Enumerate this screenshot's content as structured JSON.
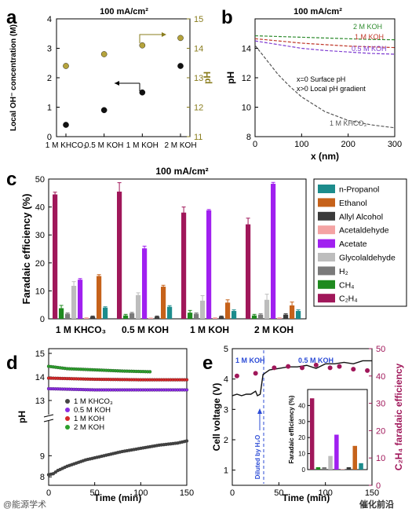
{
  "watermarks": {
    "left": "@能源学术",
    "right": "催化前沿"
  },
  "chart_data": [
    {
      "id": "a",
      "type": "scatter",
      "panel_label": "a",
      "title": "100 mA/cm²",
      "categories": [
        "1 M KHCO₃",
        "0.5 M KOH",
        "1 M KOH",
        "2 M KOH"
      ],
      "ylabel": "Local OH⁻ concentration (M)",
      "y2label": "pH",
      "ylim": [
        0,
        4
      ],
      "y2lim": [
        11,
        15
      ],
      "yticks": [
        0,
        1,
        2,
        3,
        4
      ],
      "y2ticks": [
        11,
        12,
        13,
        14,
        15
      ],
      "series": [
        {
          "axis": "left",
          "color": "#111111",
          "values": [
            0.4,
            0.9,
            1.5,
            2.4
          ]
        },
        {
          "axis": "right",
          "color": "#b5a33c",
          "values": [
            13.4,
            13.8,
            14.1,
            14.35
          ]
        }
      ]
    },
    {
      "id": "b",
      "type": "line",
      "panel_label": "b",
      "title": "100 mA/cm²",
      "xlabel": "x (nm)",
      "ylabel": "pH",
      "xlim": [
        0,
        300
      ],
      "ylim": [
        8,
        16
      ],
      "xticks": [
        0,
        100,
        200,
        300
      ],
      "yticks": [
        8,
        10,
        12,
        14
      ],
      "annotations": [
        "x=0   Surface pH",
        "x>0   Local pH gradient"
      ],
      "series": [
        {
          "name": "2 M KOH",
          "color": "#2e8b2e",
          "x": [
            0,
            50,
            100,
            150,
            200,
            250,
            300
          ],
          "y": [
            14.85,
            14.8,
            14.75,
            14.7,
            14.65,
            14.6,
            14.58
          ]
        },
        {
          "name": "1 M KOH",
          "color": "#c0392b",
          "x": [
            0,
            50,
            100,
            150,
            200,
            250,
            300
          ],
          "y": [
            14.65,
            14.5,
            14.35,
            14.25,
            14.15,
            14.1,
            14.05
          ]
        },
        {
          "name": "0.5 M KOH",
          "color": "#7e3bd1",
          "x": [
            0,
            50,
            100,
            150,
            200,
            250,
            300
          ],
          "y": [
            14.5,
            14.25,
            14.0,
            13.85,
            13.75,
            13.65,
            13.6
          ]
        },
        {
          "name": "1 M KHCO₃",
          "color": "#555555",
          "x": [
            0,
            25,
            50,
            75,
            100,
            150,
            200,
            250,
            300
          ],
          "y": [
            14.2,
            13.2,
            12.2,
            11.4,
            10.7,
            9.7,
            9.1,
            8.8,
            8.6
          ]
        }
      ]
    },
    {
      "id": "c",
      "type": "bar",
      "panel_label": "c",
      "title": "100 mA/cm²",
      "ylabel": "Faradaic efficiency (%)",
      "ylim": [
        0,
        50
      ],
      "yticks": [
        0,
        10,
        20,
        30,
        40,
        50
      ],
      "categories": [
        "1 M KHCO₃",
        "0.5 M KOH",
        "1 M KOH",
        "2 M KOH"
      ],
      "series": [
        {
          "name": "C₂H₄",
          "color": "#a0175a",
          "values": [
            44.5,
            45.5,
            38,
            33.8
          ],
          "err": [
            0.8,
            3.2,
            2.0,
            2.2
          ]
        },
        {
          "name": "CH₄",
          "color": "#1f8a1f",
          "values": [
            3.8,
            1.2,
            2.2,
            1.2
          ],
          "err": [
            1.0,
            0.4,
            0.8,
            0.4
          ]
        },
        {
          "name": "H₂",
          "color": "#7a7a7a",
          "values": [
            1.8,
            2.0,
            1.8,
            1.5
          ],
          "err": [
            0.3,
            0.3,
            0.3,
            0.3
          ]
        },
        {
          "name": "Glycolaldehyde",
          "color": "#bdbdbd",
          "values": [
            11.8,
            8.5,
            6.5,
            6.8
          ],
          "err": [
            1.5,
            0.8,
            1.8,
            2.0
          ]
        },
        {
          "name": "Acetate",
          "color": "#a020f0",
          "values": [
            14.0,
            25.2,
            38.8,
            48.3
          ],
          "err": [
            0.4,
            0.8,
            0.3,
            0.5
          ]
        },
        {
          "name": "Acetaldehyde",
          "color": "#f4a3a3",
          "values": [
            0.3,
            0.2,
            0.3,
            0.3
          ],
          "err": [
            0.1,
            0.1,
            0.1,
            0.1
          ]
        },
        {
          "name": "Allyl Alcohol",
          "color": "#3a3a3a",
          "values": [
            0.8,
            0.8,
            0.8,
            1.5
          ],
          "err": [
            0.2,
            0.2,
            0.2,
            0.3
          ]
        },
        {
          "name": "Ethanol",
          "color": "#c6621a",
          "values": [
            15.3,
            11.5,
            5.8,
            4.8
          ],
          "err": [
            0.5,
            0.5,
            1.0,
            1.2
          ]
        },
        {
          "name": "n-Propanol",
          "color": "#1c8c8c",
          "values": [
            4.0,
            4.3,
            2.8,
            2.8
          ],
          "err": [
            0.3,
            0.4,
            0.4,
            0.4
          ]
        }
      ],
      "legend_order": [
        "n-Propanol",
        "Ethanol",
        "Allyl Alcohol",
        "Acetaldehyde",
        "Acetate",
        "Glycolaldehyde",
        "H₂",
        "CH₄",
        "C₂H₄"
      ]
    },
    {
      "id": "d",
      "type": "line",
      "panel_label": "d",
      "xlabel": "Time (min)",
      "ylabel": "pH",
      "xlim": [
        0,
        150
      ],
      "xticks": [
        0,
        50,
        100,
        150
      ],
      "yticks_lower": [
        8,
        9
      ],
      "yticks_upper": [
        13,
        14,
        15
      ],
      "axis_break": [
        10,
        12.5
      ],
      "series": [
        {
          "name": "1 M KHCO₃",
          "color": "#444444",
          "x": [
            0,
            5,
            10,
            20,
            30,
            40,
            50,
            60,
            80,
            100,
            120,
            140,
            150
          ],
          "y": [
            8.1,
            8.15,
            8.3,
            8.5,
            8.65,
            8.8,
            8.9,
            9.0,
            9.2,
            9.35,
            9.5,
            9.6,
            9.7
          ]
        },
        {
          "name": "0.5 M KOH",
          "color": "#8a2be2",
          "x": [
            0,
            50,
            100,
            150
          ],
          "y": [
            13.5,
            13.45,
            13.45,
            13.45
          ]
        },
        {
          "name": "1 M KOH",
          "color": "#d62728",
          "x": [
            0,
            50,
            100,
            150
          ],
          "y": [
            13.95,
            13.9,
            13.88,
            13.88
          ]
        },
        {
          "name": "2 M KOH",
          "color": "#2ca02c",
          "x": [
            0,
            20,
            50,
            80,
            110
          ],
          "y": [
            14.45,
            14.35,
            14.3,
            14.25,
            14.22
          ]
        }
      ]
    },
    {
      "id": "e",
      "type": "line",
      "panel_label": "e",
      "xlabel": "Time (min)",
      "ylabel": "Cell voltage (V)",
      "y2label": "C₂H₄ faradaic efficiency",
      "xlim": [
        0,
        150
      ],
      "ylim": [
        0.5,
        5
      ],
      "y2lim": [
        0,
        50
      ],
      "xticks": [
        0,
        50,
        100,
        150
      ],
      "yticks": [
        1,
        2,
        3,
        4,
        5
      ],
      "y2ticks": [
        0,
        10,
        20,
        30,
        40,
        50
      ],
      "labels": {
        "region1": "1 M KOH",
        "region2": "0.5 M KOH",
        "note": "Diluted by H₂O"
      },
      "voltage": {
        "color": "#111111",
        "x": [
          0,
          5,
          10,
          15,
          20,
          25,
          27,
          30,
          33,
          40,
          50,
          60,
          70,
          80,
          90,
          100,
          110,
          120,
          130,
          140,
          150
        ],
        "y": [
          3.45,
          3.5,
          3.45,
          3.5,
          3.5,
          3.6,
          3.45,
          3.5,
          4.15,
          4.3,
          4.35,
          4.4,
          4.4,
          4.45,
          4.35,
          4.5,
          4.5,
          4.55,
          4.5,
          4.6,
          4.6
        ]
      },
      "fe_points": {
        "color": "#a0175a",
        "x": [
          5,
          25,
          45,
          60,
          75,
          90,
          105,
          115,
          130,
          145
        ],
        "y": [
          40,
          41,
          43,
          43.5,
          43,
          44,
          43,
          43.5,
          42.5,
          42
        ]
      },
      "inset": {
        "ylabel": "Faradaic efficiency (%)",
        "xlabel": "",
        "ylim": [
          0,
          50
        ],
        "yticks": [
          0,
          10,
          20,
          30,
          40
        ],
        "bars": [
          {
            "color": "#a0175a",
            "value": 44.5
          },
          {
            "color": "#1f8a1f",
            "value": 1.5
          },
          {
            "color": "#7a7a7a",
            "value": 1.5
          },
          {
            "color": "#bdbdbd",
            "value": 8.5
          },
          {
            "color": "#a020f0",
            "value": 21.8
          },
          {
            "color": "#f4a3a3",
            "value": 0.3
          },
          {
            "color": "#3a3a3a",
            "value": 1.5
          },
          {
            "color": "#c6621a",
            "value": 14.8
          },
          {
            "color": "#1c8c8c",
            "value": 4.0
          }
        ]
      }
    }
  ]
}
